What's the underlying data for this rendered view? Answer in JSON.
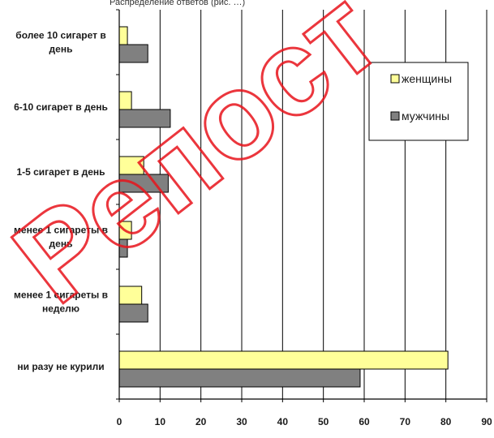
{
  "banner_text": "Распределение ответов (рис. …)",
  "watermark_text": "Репост",
  "chart_data": {
    "type": "bar",
    "orientation": "horizontal",
    "categories": [
      [
        "более 10 сигарет в",
        "день"
      ],
      [
        "6-10 сигарет в день"
      ],
      [
        "1-5 сигарет в день"
      ],
      [
        "менее 1 сигареты в",
        "день"
      ],
      [
        "менее 1 сигареты в",
        "неделю"
      ],
      [
        "ни разу не курили"
      ]
    ],
    "series": [
      {
        "name": "женщины",
        "color": "#ffff99",
        "values": [
          2,
          3,
          6,
          3,
          5.5,
          80.5
        ]
      },
      {
        "name": "мужчины",
        "color": "#808080",
        "values": [
          7,
          12.5,
          12,
          2,
          7,
          59
        ]
      }
    ],
    "xlim": [
      0,
      90
    ],
    "xticks": [
      "0",
      "10",
      "20",
      "30",
      "40",
      "50",
      "60",
      "70",
      "80",
      "90"
    ],
    "grid": true,
    "legend": "top-right"
  }
}
